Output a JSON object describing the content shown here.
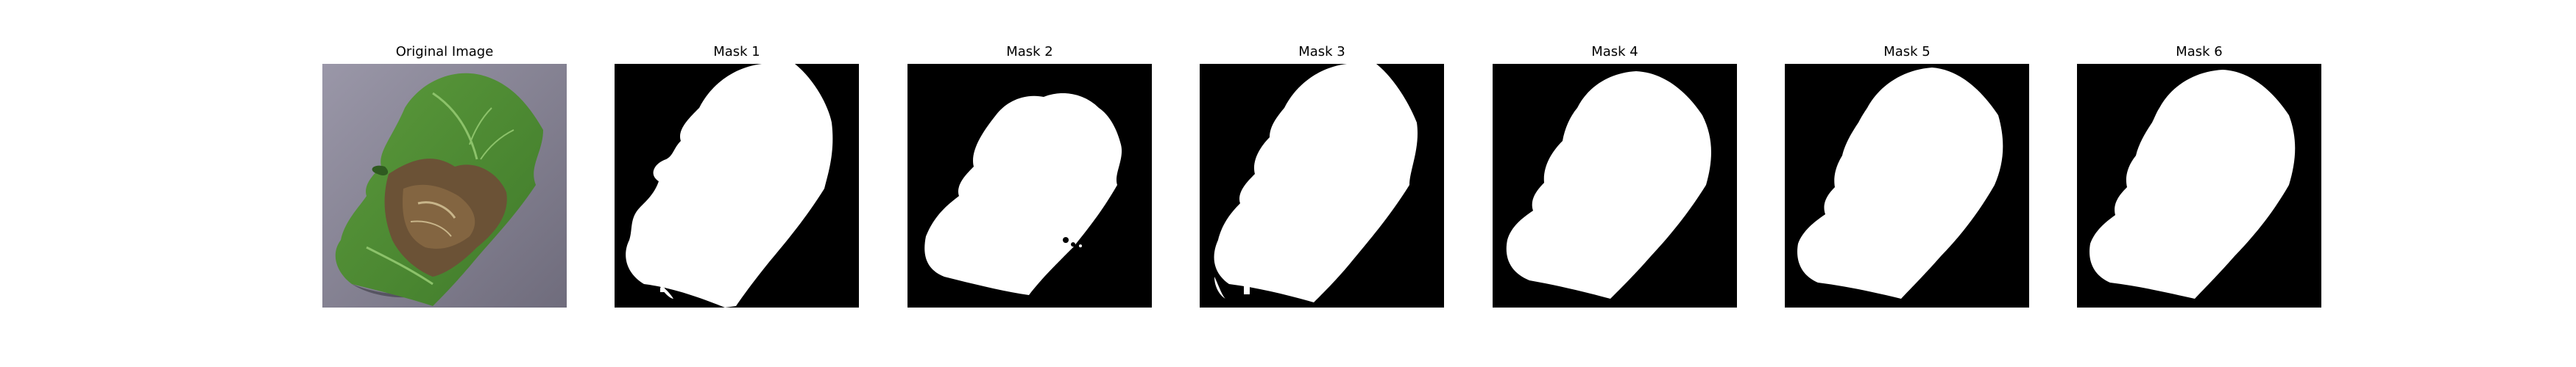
{
  "panels": [
    {
      "title": "Original Image",
      "kind": "photo"
    },
    {
      "title": "Mask 1",
      "kind": "mask"
    },
    {
      "title": "Mask 2",
      "kind": "mask"
    },
    {
      "title": "Mask 3",
      "kind": "mask"
    },
    {
      "title": "Mask 4",
      "kind": "mask"
    },
    {
      "title": "Mask 5",
      "kind": "mask"
    },
    {
      "title": "Mask 6",
      "kind": "mask"
    }
  ],
  "colors": {
    "mask_background": "#000000",
    "mask_foreground": "#ffffff",
    "photo_background": "#8a8a9c",
    "leaf_green": "#4e8a34",
    "leaf_brown": "#6b5236"
  }
}
